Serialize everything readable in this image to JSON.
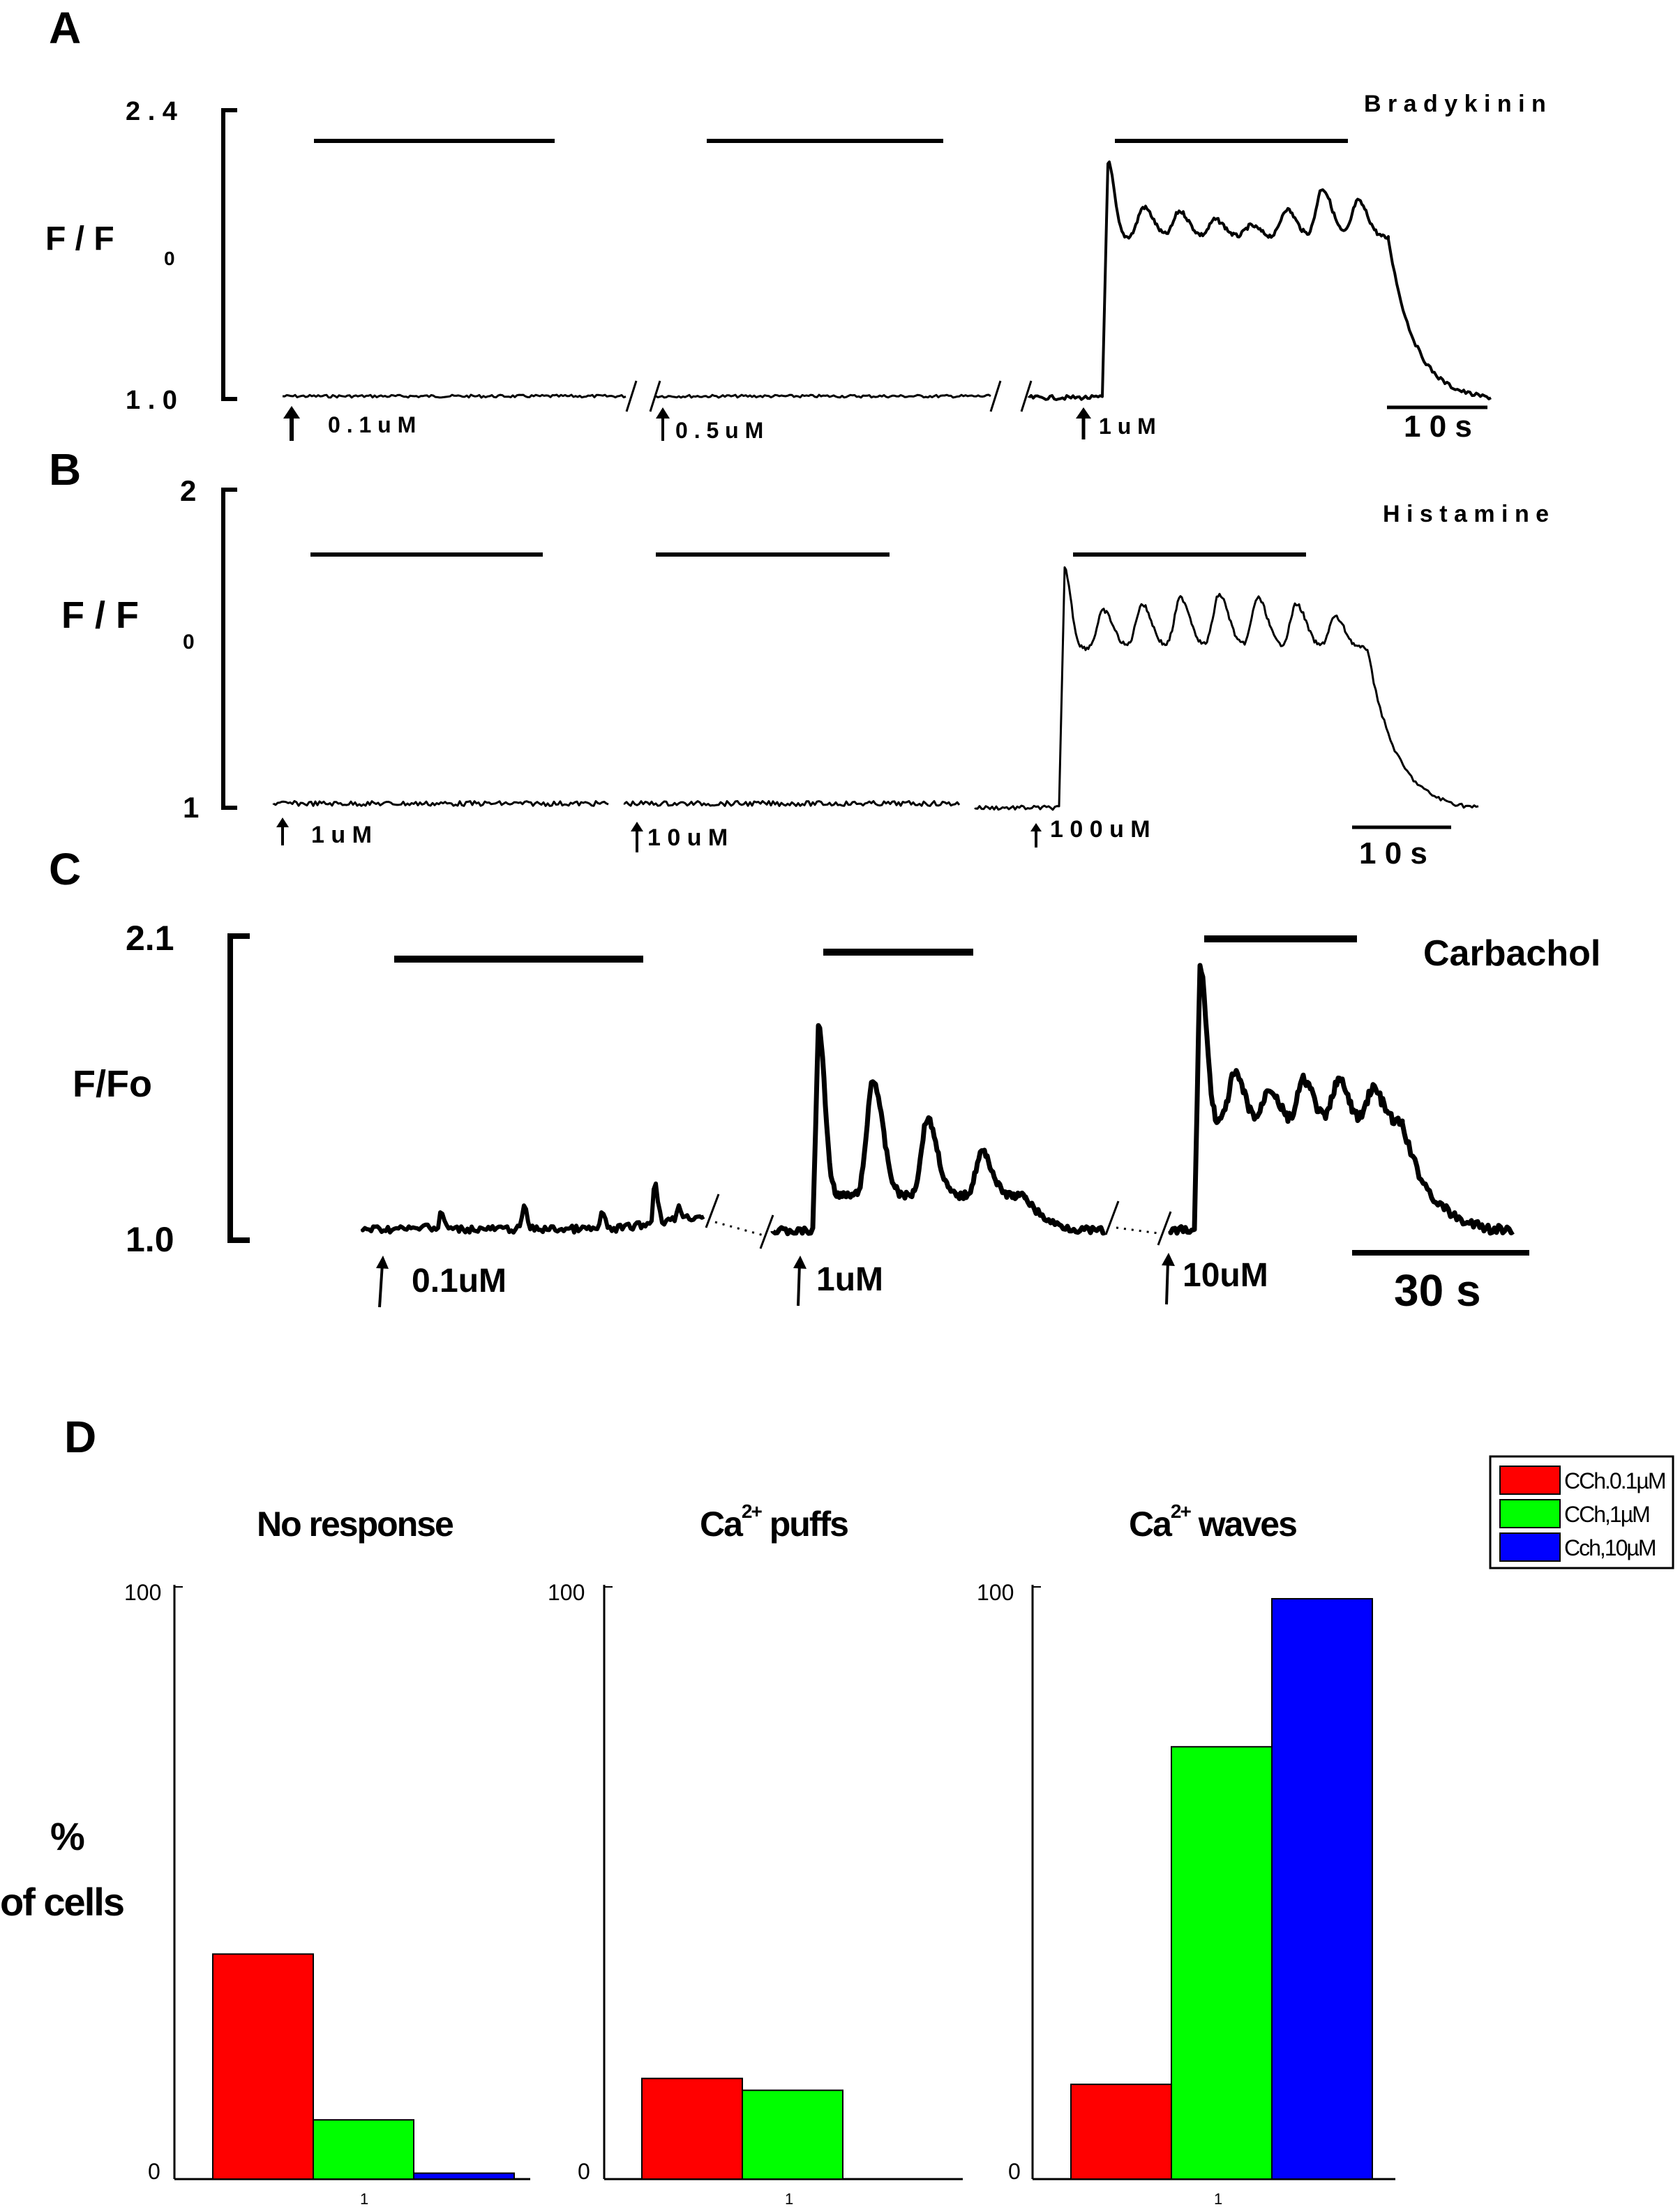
{
  "chart_data": [
    {
      "panel": "A",
      "type": "line",
      "agent": "B r a d y k i n i n",
      "ylabel_main": "F  / F",
      "ylabel_sub": "0",
      "yticks": [
        "2 . 4",
        "1 . 0"
      ],
      "ylim": [
        1.0,
        2.4
      ],
      "scale_bar": "1 0  s",
      "segments": [
        {
          "label": "0 . 1 u M",
          "response": "none"
        },
        {
          "label": "0 . 5 u M",
          "response": "none"
        },
        {
          "label": "1 u M",
          "response": "oscillation",
          "peaks": [
            2.15,
            1.93,
            1.91,
            1.87,
            1.84,
            1.92,
            2.02,
            1.96
          ]
        }
      ]
    },
    {
      "panel": "B",
      "type": "line",
      "agent": "H i s t a m  i n e",
      "ylabel_main": "F  / F",
      "ylabel_sub": "0",
      "yticks": [
        "2",
        "1"
      ],
      "ylim": [
        1,
        2
      ],
      "scale_bar": "1 0  s",
      "segments": [
        {
          "label": "1 u M",
          "response": "none"
        },
        {
          "label": "1 0 u M",
          "response": "none"
        },
        {
          "label": "1 0 0 u M",
          "response": "oscillation",
          "peaks": [
            1.75,
            1.62,
            1.64,
            1.66,
            1.67,
            1.66,
            1.64,
            1.6
          ]
        }
      ]
    },
    {
      "panel": "C",
      "type": "line",
      "agent": "Carbachol",
      "ylabel_main": "F/Fo",
      "ylabel_sub": "",
      "yticks": [
        "2.1",
        "1.0"
      ],
      "ylim": [
        1.0,
        2.1
      ],
      "scale_bar": "30  s",
      "segments": [
        {
          "label": "0.1uM",
          "response": "puffs",
          "peaks": [
            1.07,
            1.1,
            1.13,
            1.1,
            1.22,
            1.13
          ]
        },
        {
          "label": "1uM",
          "response": "oscillation",
          "peaks": [
            1.78,
            1.58,
            1.44,
            1.32
          ]
        },
        {
          "label": "10uM",
          "response": "oscillation",
          "peaks": [
            2.0,
            1.6,
            1.55,
            1.58,
            1.58,
            1.55
          ]
        }
      ]
    },
    {
      "panel": "D",
      "type": "bar",
      "ylabel": "%",
      "ylabel2": "of cells",
      "ylim": [
        0,
        100
      ],
      "yticks": [
        "100",
        "0"
      ],
      "xtick": "1",
      "legend": {
        "placement": "top-right",
        "entries": [
          {
            "name": "CCh.0.1µM",
            "color": "#ff0000"
          },
          {
            "name": "CCh,1µM",
            "color": "#00ff00"
          },
          {
            "name": "Cch,10µM",
            "color": "#0000ff"
          }
        ]
      },
      "subplots": [
        {
          "title": "No response",
          "values": [
            38,
            10,
            1
          ]
        },
        {
          "title_base": "Ca",
          "title_sup": "2+",
          "title_rest": " puffs",
          "values": [
            17,
            15,
            0
          ]
        },
        {
          "title_base": "Ca",
          "title_sup": "2+",
          "title_rest": " waves",
          "values": [
            16,
            73,
            98
          ]
        }
      ]
    }
  ]
}
